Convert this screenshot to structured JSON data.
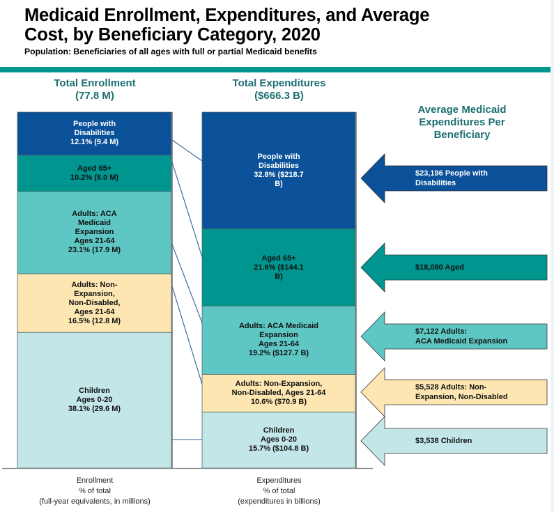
{
  "header": {
    "title_line1": "Medicaid Enrollment, Expenditures, and Average",
    "title_line2": "Cost, by Beneficiary Category, 2020",
    "subtitle": "Population: Beneficiaries of all ages with full or partial Medicaid benefits"
  },
  "colors": {
    "accent_rule": "#00968f",
    "heading_text": "#1b6f73",
    "disabilities": "#0a519a",
    "aged": "#00968f",
    "aca": "#5ec6c3",
    "nonexp": "#fde6b1",
    "children": "#c3e6e9",
    "connector": "#2f5f9a"
  },
  "enrollment": {
    "heading_line1": "Total Enrollment",
    "heading_line2": "(77.8 M)",
    "footer_line1": "Enrollment",
    "footer_line2": "% of total",
    "footer_line3": "(full-year equivalents, in millions)",
    "segments": [
      {
        "key": "disabilities",
        "label": "People with Disabilities 12.1% (9.4 M)",
        "lines": [
          "People with",
          "Disabilities",
          "12.1% (9.4 M)"
        ],
        "pct": 12.1,
        "value": 9.4,
        "text_color": "#ffffff"
      },
      {
        "key": "aged",
        "label": "Aged 65+ 10.2% (8.0 M)",
        "lines": [
          "Aged 65+",
          "10.2% (8.0 M)"
        ],
        "pct": 10.2,
        "value": 8.0,
        "text_color": "#111111"
      },
      {
        "key": "aca",
        "label": "Adults: ACA Medicaid Expansion Ages 21-64 23.1% (17.9 M)",
        "lines": [
          "Adults: ACA",
          "Medicaid",
          "Expansion",
          "Ages 21-64",
          "23.1% (17.9 M)"
        ],
        "pct": 23.1,
        "value": 17.9,
        "text_color": "#111111"
      },
      {
        "key": "nonexp",
        "label": "Adults: Non-Expansion, Non-Disabled, Ages 21-64 16.5% (12.8 M)",
        "lines": [
          "Adults: Non-",
          "Expansion,",
          "Non-Disabled,",
          "Ages 21-64",
          "16.5% (12.8 M)"
        ],
        "pct": 16.5,
        "value": 12.8,
        "text_color": "#111111"
      },
      {
        "key": "children",
        "label": "Children Ages 0-20 38.1% (29.6 M)",
        "lines": [
          "Children",
          "Ages 0-20",
          "38.1% (29.6 M)"
        ],
        "pct": 38.1,
        "value": 29.6,
        "text_color": "#111111"
      }
    ]
  },
  "expenditures": {
    "heading_line1": "Total Expenditures",
    "heading_line2": "($666.3 B)",
    "footer_line1": "Expenditures",
    "footer_line2": "% of total",
    "footer_line3": "(expenditures in billions)",
    "segments": [
      {
        "key": "disabilities",
        "lines": [
          "People with",
          "Disabilities",
          "32.8% ($218.7",
          "B)"
        ],
        "pct": 32.8,
        "value": 218.7,
        "text_color": "#ffffff"
      },
      {
        "key": "aged",
        "lines": [
          "Aged 65+",
          "21.6% ($144.1",
          "B)"
        ],
        "pct": 21.6,
        "value": 144.1,
        "text_color": "#111111"
      },
      {
        "key": "aca",
        "lines": [
          "Adults: ACA Medicaid",
          "Expansion",
          "Ages 21-64",
          "19.2% ($127.7 B)"
        ],
        "pct": 19.2,
        "value": 127.7,
        "text_color": "#111111"
      },
      {
        "key": "nonexp",
        "lines": [
          "Adults: Non-Expansion,",
          "Non-Disabled, Ages 21-64",
          "10.6% ($70.9 B)"
        ],
        "pct": 10.6,
        "value": 70.9,
        "text_color": "#111111"
      },
      {
        "key": "children",
        "lines": [
          "Children",
          "Ages 0-20",
          "15.7% ($104.8 B)"
        ],
        "pct": 15.7,
        "value": 104.8,
        "text_color": "#111111"
      }
    ]
  },
  "average": {
    "heading_line1": "Average Medicaid",
    "heading_line2": "Expenditures Per",
    "heading_line3": "Beneficiary",
    "arrows": [
      {
        "key": "disabilities",
        "amount": 23196,
        "lines": [
          "$23,196 People with",
          "Disabilities"
        ],
        "text_color": "#ffffff"
      },
      {
        "key": "aged",
        "amount": 18080,
        "lines": [
          "$18,080 Aged"
        ],
        "text_color": "#111111"
      },
      {
        "key": "aca",
        "amount": 7122,
        "lines": [
          "$7,122 Adults:",
          "ACA Medicaid Expansion"
        ],
        "text_color": "#111111"
      },
      {
        "key": "nonexp",
        "amount": 5528,
        "lines": [
          "$5,528 Adults: Non-",
          "Expansion, Non-Disabled"
        ],
        "text_color": "#111111"
      },
      {
        "key": "children",
        "amount": 3538,
        "lines": [
          "$3,538 Children"
        ],
        "text_color": "#111111"
      }
    ]
  },
  "chart_data": {
    "type": "bar",
    "title": "Medicaid Enrollment, Expenditures, and Average Cost, by Beneficiary Category, 2020",
    "subtitle": "Population: Beneficiaries of all ages with full or partial Medicaid benefits",
    "stacked": true,
    "categories": [
      "Enrollment",
      "Expenditures"
    ],
    "series": [
      {
        "name": "People with Disabilities",
        "values": [
          12.1,
          32.8
        ],
        "absolute": [
          9.4,
          218.7
        ],
        "avg_per_beneficiary": 23196
      },
      {
        "name": "Aged 65+",
        "values": [
          10.2,
          21.6
        ],
        "absolute": [
          8.0,
          144.1
        ],
        "avg_per_beneficiary": 18080
      },
      {
        "name": "Adults: ACA Medicaid Expansion Ages 21-64",
        "values": [
          23.1,
          19.2
        ],
        "absolute": [
          17.9,
          127.7
        ],
        "avg_per_beneficiary": 7122
      },
      {
        "name": "Adults: Non-Expansion, Non-Disabled, Ages 21-64",
        "values": [
          16.5,
          10.6
        ],
        "absolute": [
          12.8,
          70.9
        ],
        "avg_per_beneficiary": 5528
      },
      {
        "name": "Children Ages 0-20",
        "values": [
          38.1,
          15.7
        ],
        "absolute": [
          29.6,
          104.8
        ],
        "avg_per_beneficiary": 3538
      }
    ],
    "totals": {
      "enrollment_millions": 77.8,
      "expenditures_billions": 666.3
    },
    "ylabel": "% of total",
    "ylim": [
      0,
      100
    ]
  }
}
